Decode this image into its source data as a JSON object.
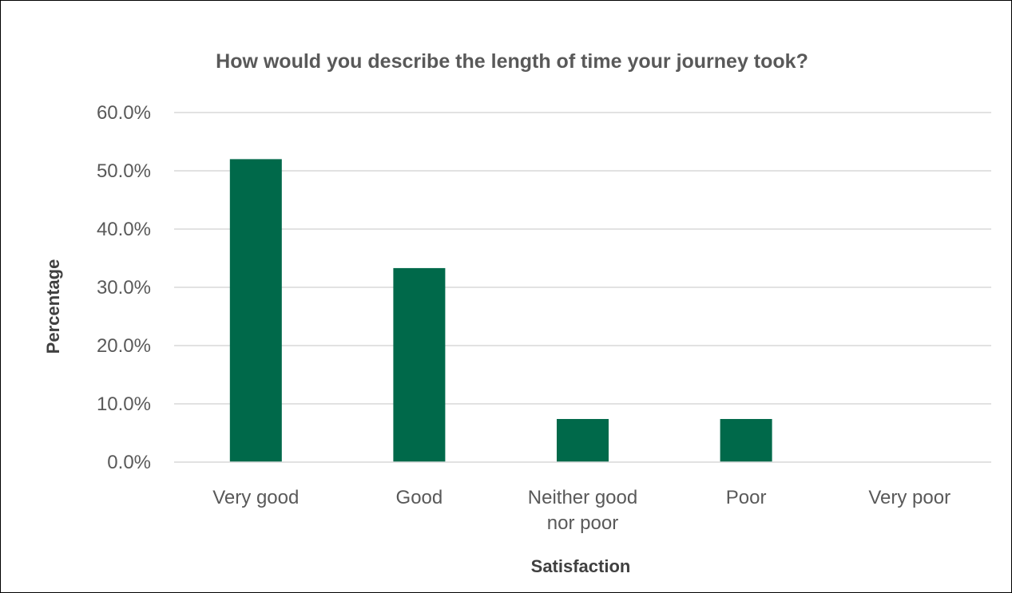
{
  "chart_data": {
    "type": "bar",
    "title": "How would you describe the length of time your journey took?",
    "xlabel": "Satisfaction",
    "ylabel": "Percentage",
    "categories": [
      [
        "Very good"
      ],
      [
        "Good"
      ],
      [
        "Neither good",
        "nor poor"
      ],
      [
        "Poor"
      ],
      [
        "Very poor"
      ]
    ],
    "values": [
      52.0,
      33.3,
      7.4,
      7.4,
      0.0
    ],
    "ylim": [
      0,
      60
    ],
    "yticks": [
      "0.0%",
      "10.0%",
      "20.0%",
      "30.0%",
      "40.0%",
      "50.0%",
      "60.0%"
    ],
    "grid": true,
    "legend": "none",
    "bar_color": "#00694A",
    "grid_color": "#D9D9D9"
  }
}
